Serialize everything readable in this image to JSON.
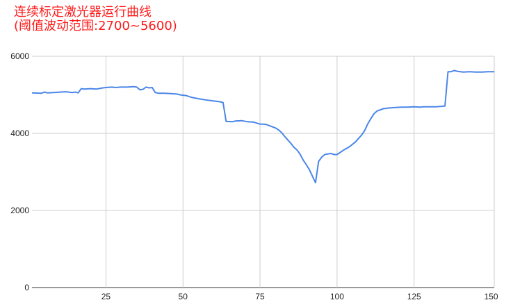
{
  "chart_data": {
    "type": "line",
    "title_line1": "连续标定激光器运行曲线",
    "title_line2": "(阈值波动范围:2700~5600)",
    "xlabel": "",
    "ylabel": "",
    "xlim": [
      1,
      151
    ],
    "ylim": [
      0,
      6000
    ],
    "x_ticks": [
      25,
      50,
      75,
      100,
      125,
      150
    ],
    "y_ticks": [
      0,
      2000,
      4000,
      6000
    ],
    "grid": true,
    "legend": "none",
    "line_color": "#4a86e8",
    "series": [
      {
        "x": [
          1,
          4,
          5,
          6,
          8,
          10,
          12,
          14,
          15,
          16,
          17,
          18,
          20,
          22,
          24,
          25,
          27,
          28,
          30,
          32,
          34,
          35,
          36,
          37,
          38,
          39,
          40,
          41,
          42,
          44,
          46,
          48,
          49,
          51,
          53,
          55,
          58,
          60,
          62,
          63,
          64,
          66,
          67,
          69,
          71,
          73,
          75,
          76,
          77,
          79,
          80,
          81,
          82,
          83,
          84,
          85,
          86,
          87,
          88,
          89,
          90,
          91,
          92,
          93,
          94,
          95,
          96,
          98,
          99,
          100,
          102,
          104,
          106,
          108,
          109,
          110,
          111,
          112,
          113,
          115,
          117,
          119,
          121,
          123,
          125,
          127,
          128,
          130,
          132,
          134,
          135,
          136,
          137,
          138,
          139,
          140,
          141,
          143,
          145,
          147,
          149,
          150,
          151
        ],
        "y": [
          5050,
          5040,
          5070,
          5050,
          5060,
          5070,
          5080,
          5060,
          5070,
          5050,
          5160,
          5150,
          5160,
          5150,
          5180,
          5190,
          5200,
          5190,
          5200,
          5200,
          5210,
          5200,
          5130,
          5140,
          5200,
          5180,
          5190,
          5060,
          5040,
          5040,
          5030,
          5020,
          5000,
          4980,
          4930,
          4900,
          4860,
          4840,
          4820,
          4800,
          4310,
          4300,
          4320,
          4330,
          4300,
          4290,
          4240,
          4240,
          4230,
          4170,
          4140,
          4090,
          4020,
          3920,
          3830,
          3740,
          3640,
          3570,
          3460,
          3310,
          3190,
          3060,
          2890,
          2720,
          3270,
          3380,
          3450,
          3480,
          3450,
          3450,
          3560,
          3650,
          3780,
          3960,
          4080,
          4250,
          4390,
          4510,
          4580,
          4640,
          4660,
          4670,
          4680,
          4680,
          4690,
          4680,
          4690,
          4690,
          4690,
          4700,
          4710,
          5600,
          5600,
          5630,
          5610,
          5600,
          5590,
          5600,
          5590,
          5590,
          5600,
          5600,
          5600
        ]
      }
    ]
  }
}
